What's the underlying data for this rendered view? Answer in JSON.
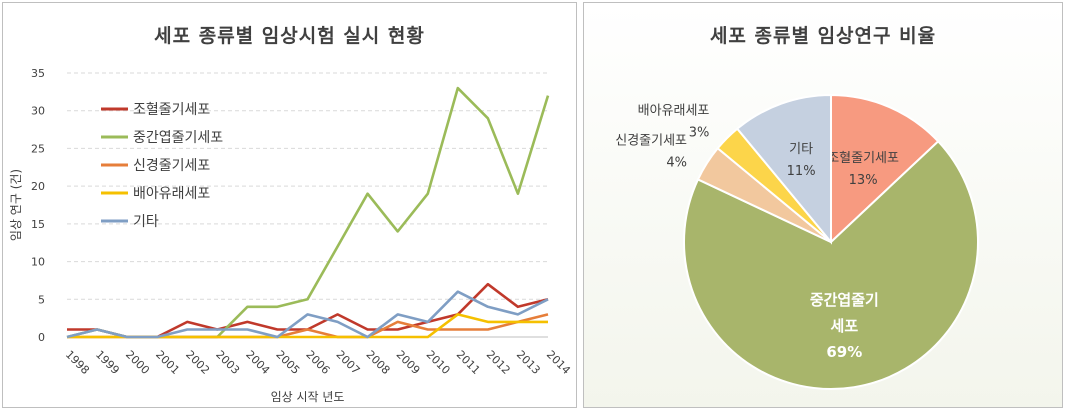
{
  "chart_data": [
    {
      "type": "line",
      "title": "세포 종류별 임상시험 실시 현황",
      "xlabel": "임상 시작 년도",
      "ylabel": "임상 연구 (건)",
      "ylim": [
        0,
        35
      ],
      "yticks": [
        0,
        5,
        10,
        15,
        20,
        25,
        30,
        35
      ],
      "grid": true,
      "legend": "top-left",
      "x": [
        "1998",
        "1999",
        "2000",
        "2001",
        "2002",
        "2003",
        "2004",
        "2005",
        "2006",
        "2007",
        "2008",
        "2009",
        "2010",
        "2011",
        "2012",
        "2013",
        "2014"
      ],
      "series": [
        {
          "name": "조혈줄기세포",
          "color": "#c0392b",
          "values": [
            1,
            1,
            0,
            0,
            2,
            1,
            2,
            1,
            1,
            3,
            1,
            1,
            2,
            3,
            7,
            4,
            5
          ]
        },
        {
          "name": "중간엽줄기세포",
          "color": "#9bbb59",
          "values": [
            0,
            1,
            0,
            0,
            0,
            0,
            4,
            4,
            5,
            12,
            19,
            14,
            19,
            33,
            29,
            19,
            32
          ]
        },
        {
          "name": "신경줄기세포",
          "color": "#e67e3a",
          "values": [
            0,
            0,
            0,
            0,
            0,
            0,
            0,
            0,
            1,
            0,
            0,
            2,
            1,
            1,
            1,
            2,
            3
          ]
        },
        {
          "name": "배아유래세포",
          "color": "#f5c000",
          "values": [
            0,
            0,
            0,
            0,
            0,
            0,
            0,
            0,
            0,
            0,
            0,
            0,
            0,
            3,
            2,
            2,
            2
          ]
        },
        {
          "name": "기타",
          "color": "#7f9ec4",
          "values": [
            0,
            1,
            0,
            0,
            1,
            1,
            1,
            0,
            3,
            2,
            0,
            3,
            2,
            6,
            4,
            3,
            5
          ]
        }
      ]
    },
    {
      "type": "pie",
      "title": "세포 종류별 임상연구 비율",
      "slices": [
        {
          "label": "조혈줄기세포",
          "value": 13,
          "pct": "13%",
          "color": "#f79a80"
        },
        {
          "label": "중간엽줄기\n세포",
          "value": 69,
          "pct": "69%",
          "color": "#a8b56b"
        },
        {
          "label": "신경줄기세포",
          "value": 4,
          "pct": "4%",
          "color": "#f2c89e"
        },
        {
          "label": "배아유래세포",
          "value": 3,
          "pct": "3%",
          "color": "#fcd54a"
        },
        {
          "label": "기타",
          "value": 11,
          "pct": "11%",
          "color": "#c5d0e0"
        }
      ]
    }
  ]
}
